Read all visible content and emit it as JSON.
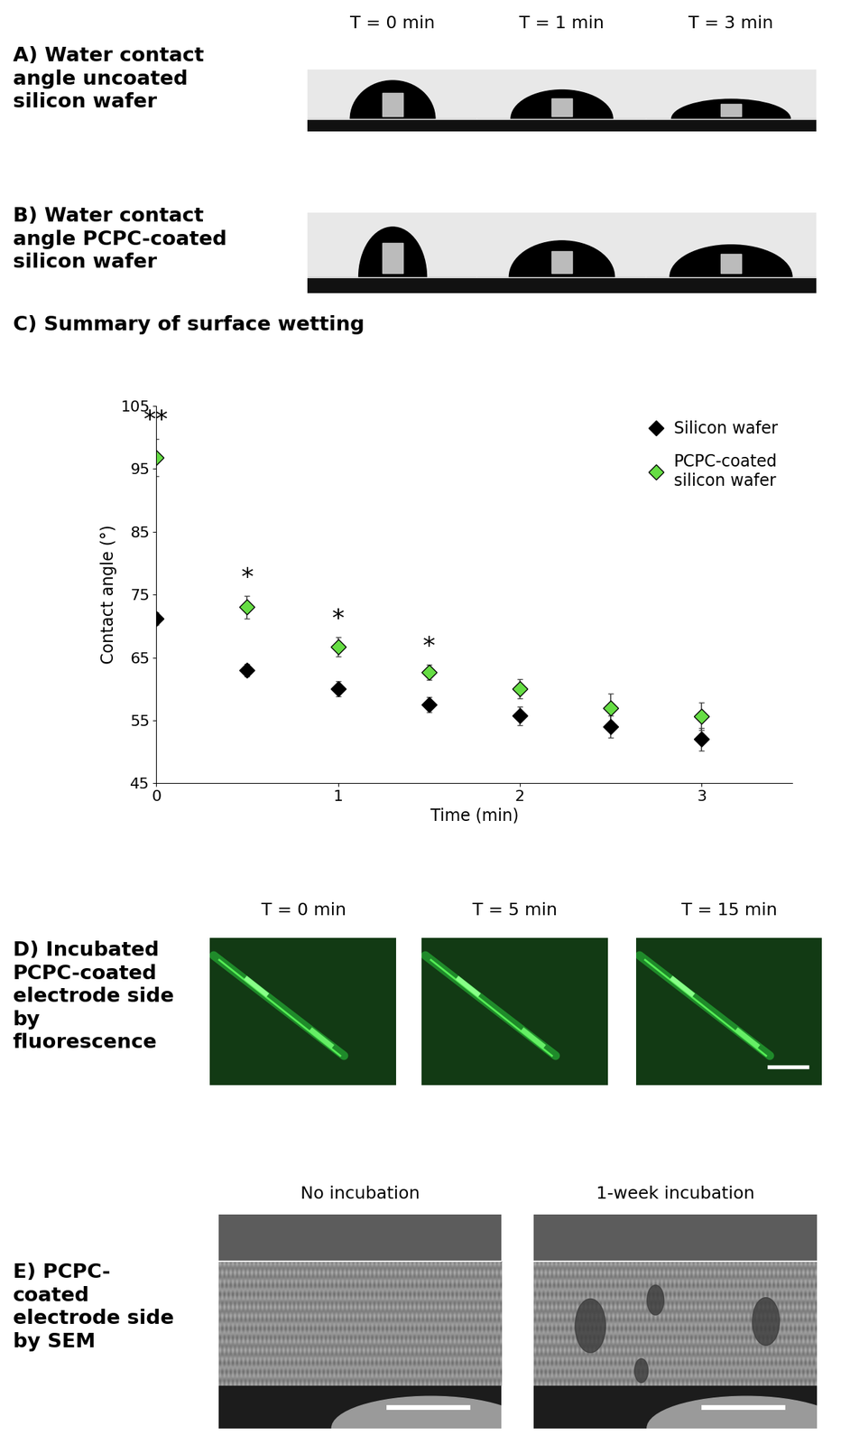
{
  "panels": {
    "A": {
      "label": "A) Water contact\nangle uncoated\nsilicon wafer",
      "times": [
        "T = 0 min",
        "T = 1 min",
        "T = 3 min"
      ]
    },
    "B": {
      "label": "B) Water contact\nangle PCPC-coated\nsilicon wafer"
    },
    "C": {
      "label": "C) Summary of surface wetting"
    },
    "D": {
      "label": "D) Incubated\nPCPC-coated\nelectrode side\nby\nfluorescence",
      "times": [
        "T = 0 min",
        "T = 5 min",
        "T = 15 min"
      ]
    },
    "E": {
      "label": "E) PCPC-\ncoated\nelectrode side\nby SEM",
      "conditions": [
        "No incubation",
        "1-week incubation"
      ]
    }
  },
  "chart_data": {
    "type": "scatter",
    "x_label": "Time (min)",
    "y_label": "Contact angle (°)",
    "x": [
      0,
      0.5,
      1,
      1.5,
      2,
      2.5,
      3
    ],
    "xlim": [
      0,
      3.5
    ],
    "xticks": [
      0,
      1,
      2,
      3
    ],
    "ylim": [
      45,
      105
    ],
    "yticks": [
      45,
      55,
      65,
      75,
      85,
      95,
      105
    ],
    "grid": false,
    "legend": "upper right",
    "series": [
      {
        "name": "Silicon wafer",
        "color": "#000000",
        "marker": "diamond",
        "values": [
          71.2,
          63.0,
          60.0,
          57.5,
          55.7,
          54.0,
          52.0
        ],
        "errors": [
          1.0,
          1.0,
          1.2,
          1.2,
          1.5,
          1.8,
          1.8
        ]
      },
      {
        "name": "PCPC-coated\nsilicon wafer",
        "color": "#66dd44",
        "marker": "diamond",
        "values": [
          96.8,
          73.0,
          66.7,
          62.6,
          60.0,
          57.0,
          55.6
        ],
        "errors": [
          3.0,
          1.8,
          1.5,
          1.2,
          1.5,
          2.2,
          2.2
        ]
      }
    ],
    "annotations": [
      {
        "x": 0,
        "text": "**"
      },
      {
        "x": 0.5,
        "text": "*"
      },
      {
        "x": 1,
        "text": "*"
      },
      {
        "x": 1.5,
        "text": "*"
      }
    ]
  }
}
